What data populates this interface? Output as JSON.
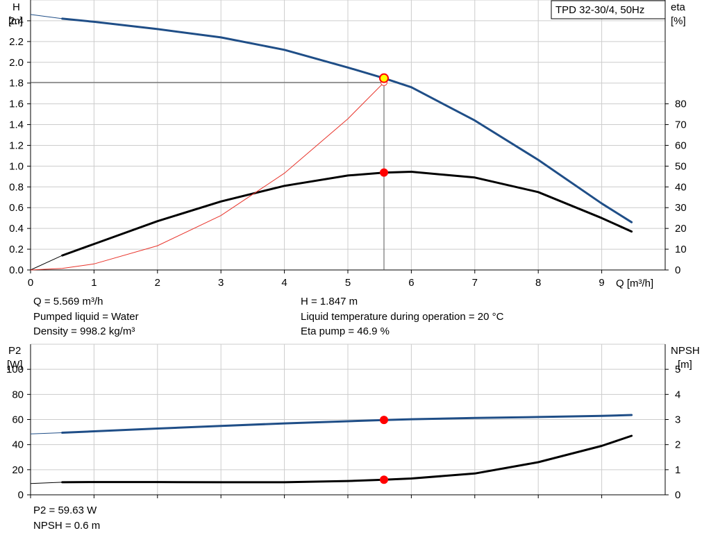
{
  "chart_data": [
    {
      "type": "line",
      "title": "TPD 32-30/4, 50Hz",
      "x_axis": {
        "label": "Q [m³/h]",
        "min": 0,
        "max": 10,
        "ticks": [
          0,
          1,
          2,
          3,
          4,
          5,
          6,
          7,
          8,
          9
        ]
      },
      "left_axis": {
        "label_line1": "H",
        "label_line2": "[m]",
        "min": 0,
        "max": 2.6,
        "ticks": [
          0.0,
          0.2,
          0.4,
          0.6,
          0.8,
          1.0,
          1.2,
          1.4,
          1.6,
          1.8,
          2.0,
          2.2,
          2.4
        ]
      },
      "right_axis": {
        "label_line1": "eta",
        "label_line2": "[%]",
        "min": 0,
        "max": 130,
        "ticks": [
          0,
          10,
          20,
          30,
          40,
          50,
          60,
          70,
          80
        ]
      },
      "grid": true,
      "series": [
        {
          "key": "H",
          "axis": "left",
          "color": "#1f4e87",
          "x": [
            0,
            0.5,
            1,
            2,
            3,
            4,
            5,
            5.569,
            6,
            7,
            8,
            9,
            9.47
          ],
          "y": [
            2.46,
            2.42,
            2.39,
            2.32,
            2.24,
            2.12,
            1.95,
            1.847,
            1.76,
            1.44,
            1.06,
            0.64,
            0.46
          ]
        },
        {
          "key": "eta",
          "axis": "right",
          "color": "#000000",
          "x": [
            0,
            0.5,
            1,
            2,
            3,
            4,
            5,
            5.569,
            6,
            7,
            8,
            9,
            9.47
          ],
          "y": [
            0,
            7,
            12.5,
            23.5,
            33,
            40.5,
            45.5,
            46.9,
            47.3,
            44.5,
            37.5,
            25,
            18.5
          ]
        },
        {
          "key": "system",
          "axis": "left",
          "color": "#e8332a",
          "x": [
            0,
            0.5,
            1,
            2,
            3,
            4,
            5,
            5.569
          ],
          "y": [
            0,
            0.015,
            0.058,
            0.233,
            0.524,
            0.932,
            1.456,
            1.806
          ]
        }
      ],
      "operating_point": {
        "q": 5.569,
        "h": 1.847,
        "eta": 46.9
      }
    },
    {
      "type": "line",
      "x_axis": {
        "min": 0,
        "max": 10,
        "ticks": [
          0,
          1,
          2,
          3,
          4,
          5,
          6,
          7,
          8,
          9
        ]
      },
      "left_axis": {
        "label_line1": "P2",
        "label_line2": "[W]",
        "min": 0,
        "max": 120,
        "ticks": [
          0,
          20,
          40,
          60,
          80,
          100
        ]
      },
      "right_axis": {
        "label_line1": "NPSH",
        "label_line2": "[m]",
        "min": 0,
        "max": 6,
        "ticks": [
          0,
          1,
          2,
          3,
          4,
          5
        ]
      },
      "grid": true,
      "series": [
        {
          "key": "P2",
          "axis": "left",
          "color": "#1f4e87",
          "x": [
            0,
            0.5,
            1,
            2,
            3,
            4,
            5,
            5.569,
            6,
            7,
            8,
            9,
            9.47
          ],
          "y": [
            48.5,
            49.5,
            50.6,
            52.8,
            54.9,
            56.9,
            58.6,
            59.63,
            60.2,
            61.2,
            62,
            62.9,
            63.6
          ]
        },
        {
          "key": "NPSH",
          "axis": "right",
          "color": "#000000",
          "x": [
            0,
            0.5,
            1,
            2,
            3,
            4,
            5,
            5.569,
            6,
            7,
            8,
            9,
            9.47
          ],
          "y": [
            0.45,
            0.5,
            0.51,
            0.51,
            0.5,
            0.5,
            0.55,
            0.6,
            0.65,
            0.85,
            1.3,
            1.95,
            2.35
          ]
        }
      ],
      "operating_point": {
        "q": 5.569,
        "p2": 59.63,
        "npsh": 0.6
      }
    }
  ],
  "info": {
    "q": "Q = 5.569 m³/h",
    "liquid": "Pumped liquid = Water",
    "density": "Density = 998.2 kg/m³",
    "h": "H = 1.847 m",
    "temp": "Liquid temperature during operation = 20 °C",
    "eta": "Eta pump = 46.9 %",
    "p2": "P2 = 59.63 W",
    "npsh": "NPSH = 0.6 m"
  },
  "colors": {
    "grid": "#cccccc",
    "head_curve": "#1f4e87",
    "system_curve": "#e8332a",
    "marker_fill": "#ff0000",
    "op_marker_fill": "#ffff00"
  }
}
